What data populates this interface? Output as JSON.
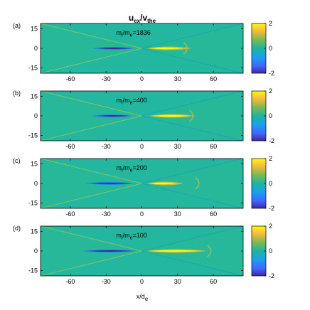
{
  "chart_data": [
    {
      "type": "heatmap",
      "panel": "(a)",
      "annotation_main": "m",
      "annotation_sub1": "i",
      "annotation_sep": "/m",
      "annotation_sub2": "e",
      "annotation_value": "=1836",
      "xlim": [
        -85,
        85
      ],
      "ylim": [
        -19,
        19
      ],
      "x_ticks": [
        -60,
        -30,
        0,
        30,
        60
      ],
      "y_ticks": [
        15,
        0,
        -15
      ],
      "structure": {
        "neg_x": [
          -42,
          -6
        ],
        "pos_x": [
          4,
          42
        ],
        "tip_x": 35,
        "outflow_edge": 35
      },
      "colorbar": {
        "min": -2,
        "max": 2,
        "ticks": [
          2,
          0,
          -2
        ]
      }
    },
    {
      "type": "heatmap",
      "panel": "(b)",
      "annotation_main": "m",
      "annotation_sub1": "i",
      "annotation_sep": "/m",
      "annotation_sub2": "e",
      "annotation_value": "=400",
      "xlim": [
        -85,
        85
      ],
      "ylim": [
        -19,
        19
      ],
      "x_ticks": [
        -60,
        -30,
        0,
        30,
        60
      ],
      "y_ticks": [
        15,
        0,
        -15
      ],
      "structure": {
        "neg_x": [
          -42,
          -8
        ],
        "pos_x": [
          6,
          45
        ],
        "tip_x": 40,
        "outflow_edge": 40
      },
      "colorbar": {
        "min": -2,
        "max": 2,
        "ticks": [
          2,
          0,
          -2
        ]
      }
    },
    {
      "type": "heatmap",
      "panel": "(c)",
      "annotation_main": "m",
      "annotation_sub1": "i",
      "annotation_sep": "/m",
      "annotation_sub2": "e",
      "annotation_value": "=200",
      "xlim": [
        -85,
        85
      ],
      "ylim": [
        -19,
        19
      ],
      "x_ticks": [
        -60,
        -30,
        0,
        30,
        60
      ],
      "y_ticks": [
        15,
        0,
        -15
      ],
      "structure": {
        "neg_x": [
          -48,
          -6
        ],
        "pos_x": [
          4,
          35
        ],
        "tip_x": 30,
        "outflow_edge": 45
      },
      "colorbar": {
        "min": -2,
        "max": 2,
        "ticks": [
          2,
          0,
          -2
        ]
      }
    },
    {
      "type": "heatmap",
      "panel": "(d)",
      "annotation_main": "m",
      "annotation_sub1": "i",
      "annotation_sep": "/m",
      "annotation_sub2": "e",
      "annotation_value": "=100",
      "xlim": [
        -85,
        85
      ],
      "ylim": [
        -19,
        19
      ],
      "x_ticks": [
        -60,
        -30,
        0,
        30,
        60
      ],
      "y_ticks": [
        15,
        0,
        -15
      ],
      "structure": {
        "neg_x": [
          -50,
          -5
        ],
        "pos_x": [
          3,
          55
        ],
        "tip_x": 50,
        "outflow_edge": 55
      },
      "colorbar": {
        "min": -2,
        "max": 2,
        "ticks": [
          2,
          0,
          -2
        ]
      }
    }
  ],
  "figure": {
    "title_main": "u",
    "title_sub1": "ex",
    "title_sep": "/v",
    "title_sub2": "the",
    "xlabel_main": "x/d",
    "xlabel_sub": "e"
  },
  "colors": {
    "colormap_low": "#3e26a8",
    "colormap_mid": "#1fb59c",
    "colormap_high": "#f9fb0e"
  }
}
